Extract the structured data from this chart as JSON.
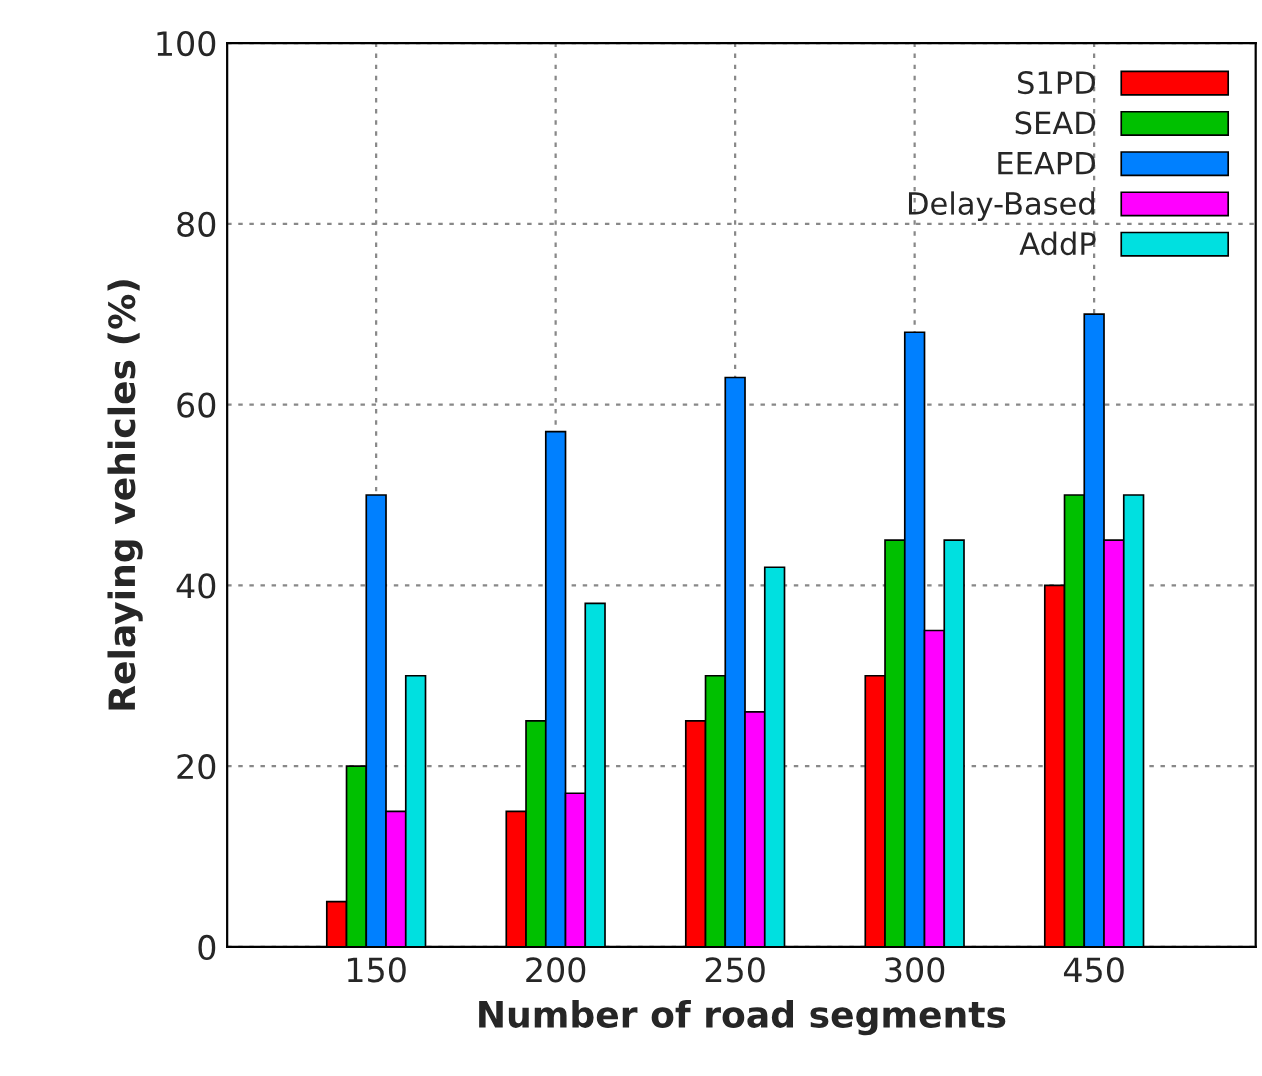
{
  "chart_data": {
    "type": "bar",
    "xlabel": "Number of road segments",
    "ylabel": "Relaying vehicles (%)",
    "categories": [
      "150",
      "200",
      "250",
      "300",
      "450"
    ],
    "series": [
      {
        "name": "S1PD",
        "color": "#ff0000",
        "values": [
          5,
          15,
          25,
          30,
          40
        ]
      },
      {
        "name": "SEAD",
        "color": "#00c000",
        "values": [
          20,
          25,
          30,
          45,
          50
        ]
      },
      {
        "name": "EEAPD",
        "color": "#0080ff",
        "values": [
          50,
          57,
          63,
          68,
          70
        ]
      },
      {
        "name": "Delay-Based",
        "color": "#ff00ff",
        "values": [
          15,
          17,
          26,
          35,
          45
        ]
      },
      {
        "name": "AddP",
        "color": "#00e0e0",
        "values": [
          30,
          38,
          42,
          45,
          50
        ]
      }
    ],
    "ylim": [
      0,
      100
    ],
    "yticks": [
      0,
      20,
      40,
      60,
      80,
      100
    ],
    "grid": true,
    "legend": "top right"
  }
}
